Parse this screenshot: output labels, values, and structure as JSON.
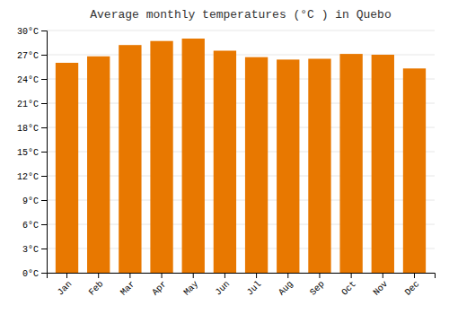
{
  "chart_data": {
    "type": "bar",
    "title": "Average monthly temperatures (°C ) in Quebo",
    "categories": [
      "Jan",
      "Feb",
      "Mar",
      "Apr",
      "May",
      "Jun",
      "Jul",
      "Aug",
      "Sep",
      "Oct",
      "Nov",
      "Dec"
    ],
    "values": [
      26.0,
      26.8,
      28.2,
      28.7,
      29.0,
      27.5,
      26.7,
      26.4,
      26.5,
      27.1,
      27.0,
      25.3
    ],
    "color": "#E87800",
    "ylim": [
      0,
      30
    ],
    "yticks": [
      {
        "value": 0,
        "label": "0°C"
      },
      {
        "value": 3,
        "label": "3°C"
      },
      {
        "value": 6,
        "label": "6°C"
      },
      {
        "value": 9,
        "label": "9°C"
      },
      {
        "value": 12,
        "label": "12°C"
      },
      {
        "value": 15,
        "label": "15°C"
      },
      {
        "value": 18,
        "label": "18°C"
      },
      {
        "value": 21,
        "label": "21°C"
      },
      {
        "value": 24,
        "label": "24°C"
      },
      {
        "value": 27,
        "label": "27°C"
      },
      {
        "value": 30,
        "label": "30°C"
      }
    ],
    "grid": true
  }
}
